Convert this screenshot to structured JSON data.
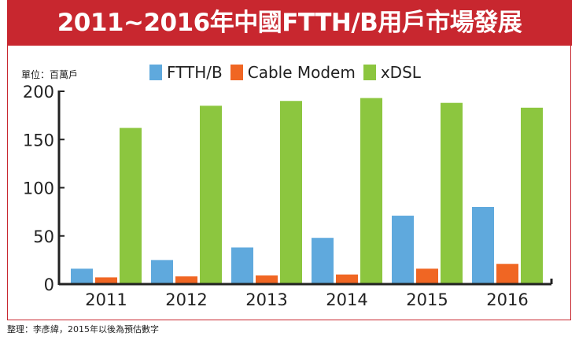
{
  "title": "2011~2016年中國FTTH/B用戶市場發展",
  "unit_label": "單位：百萬戶",
  "footnote": "整理：李彥緯，2015年以後為預估數字",
  "chart_data": {
    "type": "bar",
    "title": "2011~2016年中國FTTH/B用戶市場發展",
    "xlabel": "",
    "ylabel": "單位：百萬戶",
    "categories": [
      "2011",
      "2012",
      "2013",
      "2014",
      "2015",
      "2016"
    ],
    "series": [
      {
        "name": "FTTH/B",
        "color": "#5fa9dd",
        "values": [
          16,
          25,
          38,
          48,
          71,
          80
        ]
      },
      {
        "name": "Cable Modem",
        "color": "#f06623",
        "values": [
          7,
          8,
          9,
          10,
          16,
          21
        ]
      },
      {
        "name": "xDSL",
        "color": "#8cc63f",
        "values": [
          162,
          185,
          190,
          193,
          188,
          183
        ]
      }
    ],
    "ylim": [
      0,
      200
    ],
    "yticks": [
      "0",
      "50",
      "100",
      "150",
      "200"
    ],
    "grid": false,
    "legend": "top-center"
  }
}
